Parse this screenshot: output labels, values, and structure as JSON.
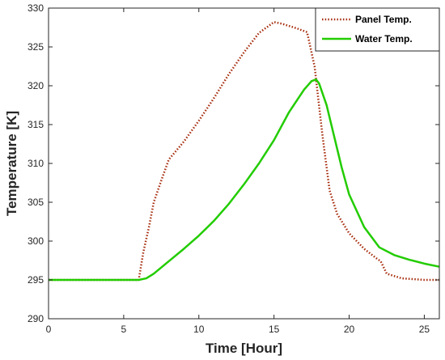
{
  "chart_data": {
    "type": "line",
    "title": "",
    "xlabel": "Time [Hour]",
    "ylabel": "Temperature [K]",
    "xlim": [
      0,
      26
    ],
    "ylim": [
      290,
      330
    ],
    "xticks": [
      0,
      5,
      10,
      15,
      20,
      25
    ],
    "yticks": [
      290,
      295,
      300,
      305,
      310,
      315,
      320,
      325,
      330
    ],
    "grid": false,
    "legend_position": "top-right",
    "series": [
      {
        "name": "Panel Temp.",
        "color": "#a52a0a",
        "style": "dotted",
        "x": [
          0,
          6.0,
          6.3,
          6.7,
          7.0,
          7.5,
          8.0,
          9.0,
          10.0,
          11.0,
          12.0,
          13.0,
          14.0,
          15.0,
          15.5,
          16.5,
          17.2,
          17.7,
          18.2,
          18.7,
          19.2,
          20.0,
          21.0,
          21.8,
          22.1,
          22.5,
          23.5,
          25.0,
          26.0
        ],
        "y": [
          295.0,
          295.0,
          298.5,
          302.0,
          305.0,
          307.8,
          310.5,
          312.8,
          315.5,
          318.4,
          321.5,
          324.3,
          326.8,
          328.2,
          328.0,
          327.4,
          326.9,
          322.5,
          314.0,
          306.5,
          303.5,
          301.0,
          299.0,
          297.8,
          297.4,
          295.8,
          295.2,
          295.0,
          295.0
        ]
      },
      {
        "name": "Water Temp.",
        "color": "#22cc00",
        "style": "solid",
        "x": [
          0,
          6.0,
          6.5,
          7.0,
          8.0,
          9.0,
          10.0,
          11.0,
          12.0,
          13.0,
          14.0,
          15.0,
          16.0,
          17.0,
          17.5,
          17.8,
          18.0,
          18.5,
          19.0,
          19.5,
          20.0,
          21.0,
          22.0,
          23.0,
          24.0,
          25.0,
          26.0
        ],
        "y": [
          295.0,
          295.0,
          295.2,
          295.8,
          297.4,
          299.0,
          300.7,
          302.6,
          304.8,
          307.3,
          310.0,
          313.0,
          316.6,
          319.5,
          320.6,
          320.8,
          320.3,
          317.5,
          313.5,
          309.5,
          306.0,
          301.8,
          299.2,
          298.2,
          297.6,
          297.1,
          296.7
        ]
      }
    ]
  }
}
